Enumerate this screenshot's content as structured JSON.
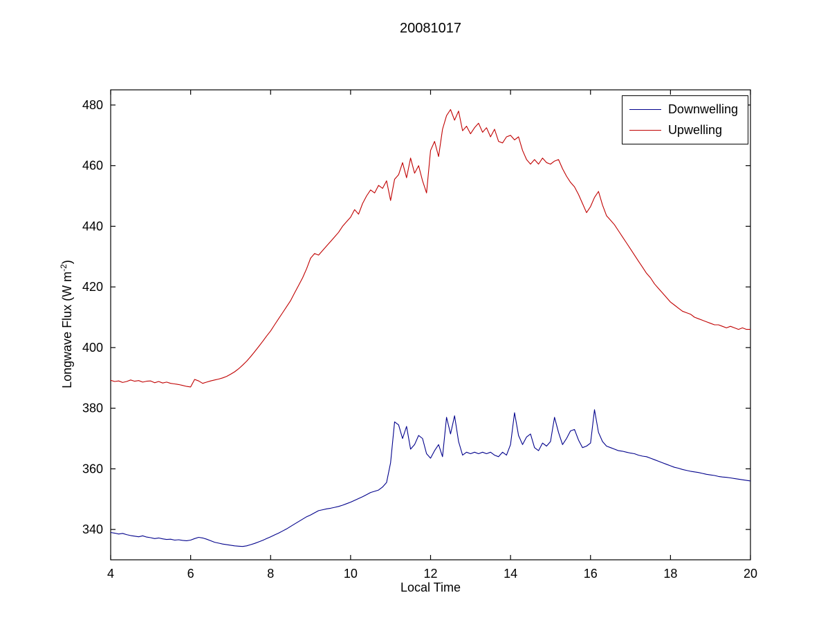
{
  "colors": {
    "axis": "#000000",
    "background": "#ffffff"
  },
  "chart_data": {
    "type": "line",
    "title": "20081017",
    "xlabel": "Local Time",
    "ylabel": "Longwave Flux (W m⁻²)",
    "ylabel_parts": {
      "prefix": "Longwave Flux (W m",
      "sup": "-2",
      "suffix": ")"
    },
    "xlim": [
      4,
      20
    ],
    "ylim": [
      330,
      485
    ],
    "xticks": [
      4,
      6,
      8,
      10,
      12,
      14,
      16,
      18,
      20
    ],
    "yticks": [
      340,
      360,
      380,
      400,
      420,
      440,
      460,
      480
    ],
    "grid": false,
    "legend_position": "top-right",
    "x": [
      4,
      4.1,
      4.2,
      4.3,
      4.4,
      4.5,
      4.6,
      4.7,
      4.8,
      4.9,
      5,
      5.1,
      5.2,
      5.3,
      5.4,
      5.5,
      5.6,
      5.7,
      5.8,
      5.9,
      6,
      6.1,
      6.2,
      6.3,
      6.4,
      6.5,
      6.6,
      6.7,
      6.8,
      6.9,
      7,
      7.1,
      7.2,
      7.3,
      7.4,
      7.5,
      7.6,
      7.7,
      7.8,
      7.9,
      8,
      8.1,
      8.2,
      8.3,
      8.4,
      8.5,
      8.6,
      8.7,
      8.8,
      8.9,
      9,
      9.1,
      9.2,
      9.3,
      9.4,
      9.5,
      9.6,
      9.7,
      9.8,
      9.9,
      10,
      10.1,
      10.2,
      10.3,
      10.4,
      10.5,
      10.6,
      10.7,
      10.8,
      10.9,
      11,
      11.1,
      11.2,
      11.3,
      11.4,
      11.5,
      11.6,
      11.7,
      11.8,
      11.9,
      12,
      12.1,
      12.2,
      12.3,
      12.4,
      12.5,
      12.6,
      12.7,
      12.8,
      12.9,
      13,
      13.1,
      13.2,
      13.3,
      13.4,
      13.5,
      13.6,
      13.7,
      13.8,
      13.9,
      14,
      14.1,
      14.2,
      14.3,
      14.4,
      14.5,
      14.6,
      14.7,
      14.8,
      14.9,
      15,
      15.1,
      15.2,
      15.3,
      15.4,
      15.5,
      15.6,
      15.7,
      15.8,
      15.9,
      16,
      16.1,
      16.2,
      16.3,
      16.4,
      16.5,
      16.6,
      16.7,
      16.8,
      16.9,
      17,
      17.1,
      17.2,
      17.3,
      17.4,
      17.5,
      17.6,
      17.7,
      17.8,
      17.9,
      18,
      18.1,
      18.2,
      18.3,
      18.4,
      18.5,
      18.6,
      18.7,
      18.8,
      18.9,
      19,
      19.1,
      19.2,
      19.3,
      19.4,
      19.5,
      19.6,
      19.7,
      19.8,
      19.9,
      20
    ],
    "series": [
      {
        "name": "Downwelling",
        "color": "#00008b",
        "values": [
          339,
          338.8,
          338.5,
          338.7,
          338.3,
          338,
          337.8,
          337.6,
          337.9,
          337.5,
          337.3,
          337,
          337.2,
          336.9,
          336.7,
          336.8,
          336.5,
          336.6,
          336.4,
          336.3,
          336.5,
          337,
          337.4,
          337.2,
          336.8,
          336.3,
          335.8,
          335.5,
          335.2,
          335,
          334.8,
          334.6,
          334.5,
          334.4,
          334.6,
          335,
          335.4,
          335.9,
          336.4,
          337,
          337.6,
          338.2,
          338.8,
          339.5,
          340.2,
          341,
          341.8,
          342.6,
          343.4,
          344.2,
          344.8,
          345.5,
          346.2,
          346.5,
          346.8,
          347,
          347.3,
          347.6,
          348,
          348.5,
          349,
          349.6,
          350.2,
          350.8,
          351.5,
          352.2,
          352.6,
          353,
          354,
          355.5,
          362,
          375.5,
          374.5,
          370,
          374,
          366.5,
          368,
          371,
          370,
          365,
          363.5,
          366,
          368,
          364,
          377,
          371.5,
          377.5,
          369,
          364.5,
          365.5,
          365,
          365.5,
          365,
          365.5,
          365,
          365.5,
          364.5,
          364,
          365.5,
          364.5,
          368,
          378.5,
          371,
          368,
          370.5,
          371.5,
          367,
          366,
          368.5,
          367.5,
          369,
          377,
          372,
          368,
          370,
          372.5,
          373,
          369.5,
          367,
          367.5,
          368.5,
          379.5,
          372,
          369,
          367.5,
          367,
          366.5,
          366,
          365.8,
          365.5,
          365.2,
          365,
          364.5,
          364.2,
          364,
          363.5,
          363,
          362.5,
          362,
          361.5,
          361,
          360.5,
          360.2,
          359.8,
          359.5,
          359.2,
          359,
          358.8,
          358.5,
          358.2,
          358,
          357.8,
          357.5,
          357.3,
          357.2,
          357,
          356.8,
          356.6,
          356.4,
          356.2,
          356
        ]
      },
      {
        "name": "Upwelling",
        "color": "#c00000",
        "values": [
          389.2,
          388.8,
          389,
          388.5,
          388.8,
          389.3,
          388.9,
          389.1,
          388.6,
          388.9,
          389,
          388.4,
          388.8,
          388.3,
          388.6,
          388.2,
          388,
          387.8,
          387.5,
          387.2,
          387,
          389.5,
          389,
          388.2,
          388.6,
          389,
          389.3,
          389.6,
          390,
          390.5,
          391.2,
          392,
          393,
          394.2,
          395.5,
          397,
          398.6,
          400.3,
          402,
          403.8,
          405.5,
          407.5,
          409.5,
          411.5,
          413.5,
          415.5,
          418,
          420.5,
          423,
          426,
          429.5,
          431,
          430.5,
          432,
          433.5,
          435,
          436.5,
          438,
          440,
          441.5,
          443,
          445.5,
          444,
          447.5,
          450,
          452,
          451,
          453.5,
          452.5,
          455,
          448.5,
          455.5,
          457,
          461,
          456,
          462.5,
          457.5,
          460,
          455,
          451,
          465,
          468,
          463,
          472,
          476.5,
          478.5,
          475,
          478,
          471.5,
          473,
          470.5,
          472.5,
          474,
          471,
          472.5,
          469.5,
          472,
          468,
          467.5,
          469.5,
          470,
          468.5,
          469.5,
          465,
          462,
          460.5,
          462,
          460.5,
          462.5,
          461,
          460.5,
          461.5,
          462,
          459,
          456.5,
          454.5,
          453,
          450.5,
          447.5,
          444.5,
          446.5,
          449.5,
          451.5,
          447,
          443.5,
          442,
          440.5,
          438.5,
          436.5,
          434.5,
          432.5,
          430.5,
          428.5,
          426.5,
          424.5,
          423,
          421,
          419.5,
          418,
          416.5,
          415,
          414,
          413,
          412,
          411.5,
          411,
          410,
          409.5,
          409,
          408.5,
          408,
          407.5,
          407.5,
          407,
          406.5,
          407,
          406.5,
          406,
          406.5,
          406,
          406
        ]
      }
    ]
  }
}
